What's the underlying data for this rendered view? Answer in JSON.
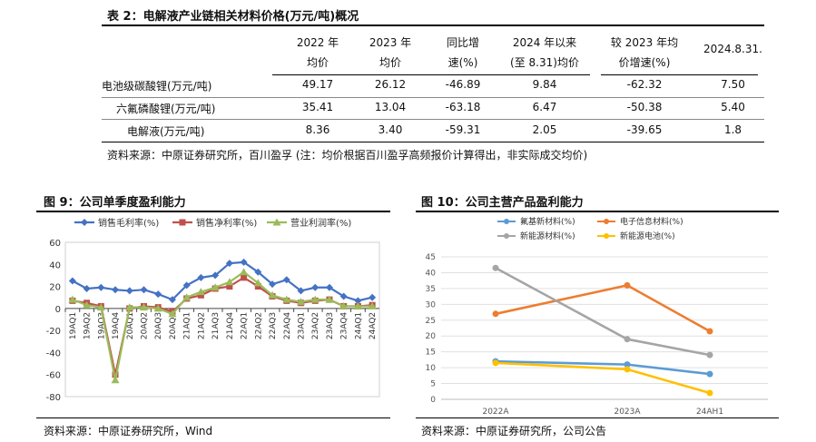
{
  "table": {
    "title": "表 2：电解液产业链相关材料价格(万元/吨)概况",
    "headers": [
      [
        "2022 年",
        "均价"
      ],
      [
        "2023 年",
        "均价"
      ],
      [
        "同比增",
        "速(%)"
      ],
      [
        "2024 年以来",
        "(至 8.31)均价"
      ],
      [
        "较 2023 年均",
        "价增速(%)"
      ],
      [
        "2024.8.31.",
        ""
      ]
    ],
    "rows": [
      {
        "label": "电池级碳酸锂(万元/吨)",
        "values": [
          "49.17",
          "26.12",
          "-46.89",
          "9.84",
          "-62.32",
          "7.50"
        ]
      },
      {
        "label": "六氟磷酸锂(万元/吨)",
        "values": [
          "35.41",
          "13.04",
          "-63.18",
          "6.47",
          "-50.38",
          "5.40"
        ]
      },
      {
        "label": "电解液(万元/吨)",
        "values": [
          "8.36",
          "3.40",
          "-59.31",
          "2.05",
          "-39.65",
          "1.8"
        ]
      }
    ],
    "source": "资料来源：中原证券研究所，百川盈孚 (注：均价根据百川盈孚高频报价计算得出，非实际成交均价)"
  },
  "figure9": {
    "title": "图 9：公司单季度盈利能力",
    "source": "资料来源：中原证券研究所，Wind",
    "chart_data": {
      "type": "line",
      "categories": [
        "19AQ1",
        "19AQ2",
        "19AQ3",
        "19AQ4",
        "20AQ1",
        "20AQ2",
        "20AQ3",
        "20AQ4",
        "21AQ1",
        "21AQ2",
        "21AQ3",
        "21AQ4",
        "22AQ1",
        "22AQ2",
        "22AQ3",
        "22AQ4",
        "23AQ1",
        "23AQ2",
        "23AQ3",
        "23AQ4",
        "24AQ1",
        "24AQ2"
      ],
      "series": [
        {
          "name": "销售毛利率(%)",
          "color": "#4472C4",
          "marker": "diamond",
          "values": [
            25,
            18,
            19,
            17,
            16,
            17,
            13,
            8,
            21,
            28,
            30,
            41,
            42,
            33,
            22,
            26,
            16,
            19,
            19,
            11,
            7,
            10
          ]
        },
        {
          "name": "销售净利率(%)",
          "color": "#C0504D",
          "marker": "square",
          "values": [
            7,
            5,
            2,
            -60,
            0,
            2,
            1,
            -3,
            9,
            12,
            18,
            20,
            28,
            20,
            11,
            7,
            5,
            7,
            8,
            2,
            2,
            3
          ]
        },
        {
          "name": "营业利润率(%)",
          "color": "#9BBB59",
          "marker": "triangle",
          "values": [
            8,
            3,
            1,
            -65,
            1,
            1,
            0,
            -5,
            10,
            15,
            19,
            24,
            33,
            23,
            12,
            8,
            6,
            8,
            8,
            2,
            2,
            2
          ]
        }
      ],
      "ylim": [
        -80,
        60
      ],
      "yticks": [
        "60",
        "40",
        "20",
        "0",
        "-20",
        "-40",
        "-60",
        "-80"
      ],
      "legend": "top",
      "grid": false
    }
  },
  "figure10": {
    "title": "图 10：公司主营产品盈利能力",
    "source": "资料来源：中原证券研究所，公司公告",
    "chart_data": {
      "type": "line",
      "categories": [
        "2022A",
        "2023A",
        "24AH1"
      ],
      "series": [
        {
          "name": "氟基新材料(%)",
          "color": "#5B9BD5",
          "values": [
            12,
            11,
            8
          ]
        },
        {
          "name": "电子信息材料(%)",
          "color": "#ED7D31",
          "values": [
            27,
            36,
            21.5
          ]
        },
        {
          "name": "新能源材料(%)",
          "color": "#A5A5A5",
          "values": [
            41.5,
            19,
            14
          ]
        },
        {
          "name": "新能源电池(%)",
          "color": "#FFC000",
          "values": [
            11.5,
            9.5,
            2
          ]
        }
      ],
      "ylim": [
        0,
        45
      ],
      "yticks": [
        "45",
        "40",
        "35",
        "30",
        "25",
        "20",
        "15",
        "10",
        "5",
        "0"
      ],
      "legend": "top",
      "grid": true
    }
  }
}
